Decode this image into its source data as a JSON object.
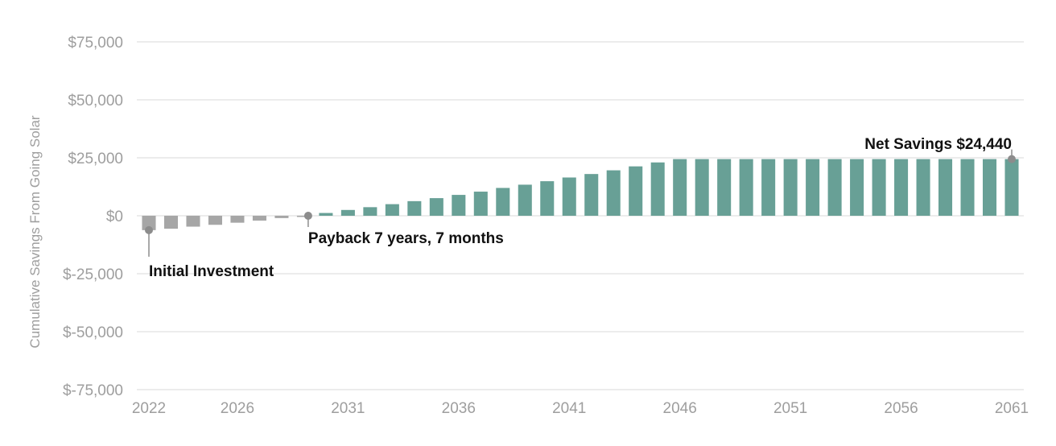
{
  "chart_data": {
    "type": "bar",
    "ylabel": "Cumulative Savings From Going Solar",
    "ylim": [
      -75000,
      75000
    ],
    "yticks": [
      75000,
      50000,
      25000,
      0,
      -25000,
      -50000,
      -75000
    ],
    "ytick_labels": [
      "$75,000",
      "$50,000",
      "$25,000",
      "$0",
      "$-25,000",
      "$-50,000",
      "$-75,000"
    ],
    "xticks": [
      2022,
      2026,
      2031,
      2036,
      2041,
      2046,
      2051,
      2056,
      2061
    ],
    "xtick_labels": [
      "2022",
      "2026",
      "2031",
      "2036",
      "2041",
      "2046",
      "2051",
      "2056",
      "2061"
    ],
    "grid": true,
    "colors": {
      "negative": "#a6a6a6",
      "positive": "#68a096",
      "grid": "#d9d9d9",
      "marker": "#8c8c8c"
    },
    "x": [
      2022,
      2023,
      2024,
      2025,
      2026,
      2027,
      2028,
      2029,
      2030,
      2031,
      2032,
      2033,
      2034,
      2035,
      2036,
      2037,
      2038,
      2039,
      2040,
      2041,
      2042,
      2043,
      2044,
      2045,
      2046,
      2047,
      2048,
      2049,
      2050,
      2051,
      2052,
      2053,
      2054,
      2055,
      2056,
      2057,
      2058,
      2059,
      2060,
      2061
    ],
    "values": [
      -6200,
      -5600,
      -4700,
      -3900,
      -3000,
      -2100,
      -1000,
      -300,
      1200,
      2500,
      3700,
      5000,
      6300,
      7600,
      9000,
      10400,
      12000,
      13400,
      14900,
      16500,
      18000,
      19600,
      21300,
      23000,
      24440,
      24440,
      24440,
      24440,
      24440,
      24440,
      24440,
      24440,
      24440,
      24440,
      24440,
      24440,
      24440,
      24440,
      24440,
      24440
    ],
    "annotations": [
      {
        "text": "Initial Investment",
        "x": 2022,
        "y": -6200
      },
      {
        "text": "Payback 7 years, 7 months",
        "x": 2029.2,
        "y": 0
      },
      {
        "text": "Net Savings $24,440",
        "x": 2061,
        "y": 24440
      }
    ]
  }
}
